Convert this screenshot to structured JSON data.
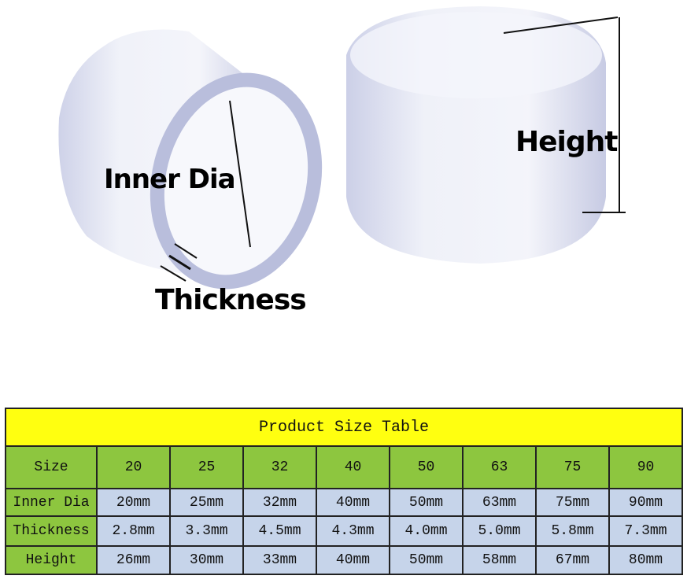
{
  "labels": {
    "inner_dia": "Inner Dia",
    "thickness": "Thickness",
    "height": "Height"
  },
  "table": {
    "title": "Product Size Table",
    "rows": [
      {
        "label": "Size",
        "values": [
          "20",
          "25",
          "32",
          "40",
          "50",
          "63",
          "75",
          "90"
        ]
      },
      {
        "label": "Inner Dia",
        "values": [
          "20mm",
          "25mm",
          "32mm",
          "40mm",
          "50mm",
          "63mm",
          "75mm",
          "90mm"
        ]
      },
      {
        "label": "Thickness",
        "values": [
          "2.8mm",
          "3.3mm",
          "4.5mm",
          "4.3mm",
          "4.0mm",
          "5.0mm",
          "5.8mm",
          "7.3mm"
        ]
      },
      {
        "label": "Height",
        "values": [
          "26mm",
          "30mm",
          "33mm",
          "40mm",
          "50mm",
          "58mm",
          "67mm",
          "80mm"
        ]
      }
    ]
  },
  "colors": {
    "title_bg": "#ffff10",
    "header_bg": "#8dc63f",
    "cell_bg": "#c6d4ea"
  }
}
